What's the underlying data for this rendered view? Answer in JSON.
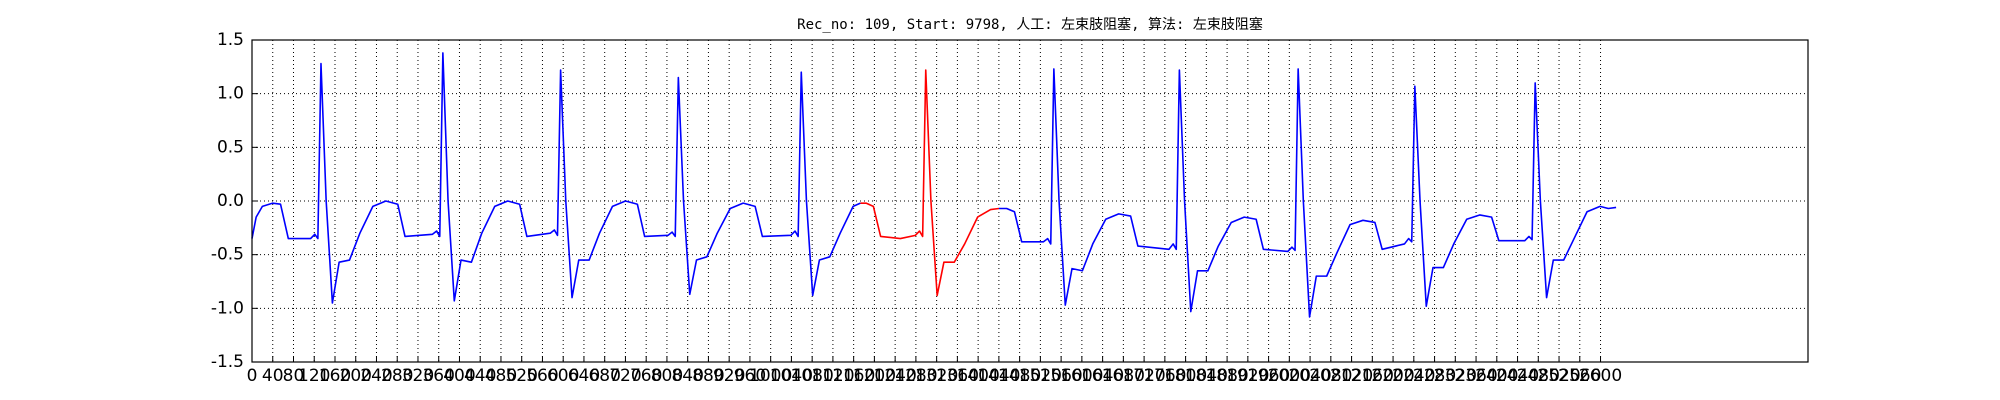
{
  "chart_data": {
    "type": "line",
    "title": "Rec_no: 109, Start: 9798, 人工: 左束肢阻塞, 算法: 左束肢阻塞",
    "xlim": [
      0,
      3000
    ],
    "ylim": [
      -1.5,
      1.5
    ],
    "xticks": [
      0,
      40,
      80,
      120,
      160,
      200,
      240,
      280,
      320,
      360,
      400,
      440,
      480,
      520,
      560,
      600,
      640,
      680,
      720,
      760,
      800,
      840,
      880,
      920,
      960,
      1000,
      1040,
      1080,
      1120,
      1160,
      1200,
      1240,
      1280,
      1320,
      1360,
      1400,
      1440,
      1480,
      1520,
      1560,
      1600,
      1640,
      1680,
      1720,
      1760,
      1800,
      1840,
      1880,
      1920,
      1960,
      2000,
      2040,
      2080,
      2120,
      2160,
      2200,
      2240,
      2280,
      2320,
      2360,
      2400,
      2440,
      2480,
      2520,
      2560,
      2600
    ],
    "yticks": [
      -1.5,
      {
        "value": -1,
        "label": "-1.0"
      },
      -0.5,
      {
        "value": 0,
        "label": "0.0"
      },
      0.5,
      {
        "value": 1,
        "label": "1.0"
      },
      1.5
    ],
    "grid": true,
    "series": [
      {
        "color": "#0000ff",
        "x": [
          0,
          8,
          20,
          40,
          55,
          70,
          113,
          121,
          127,
          133,
          143,
          155,
          168,
          188,
          208,
          233,
          258,
          281,
          295,
          348,
          356,
          362,
          368,
          378,
          390,
          403,
          423,
          443,
          468,
          493,
          516,
          530,
          575,
          583,
          589,
          595,
          605,
          617,
          630,
          650,
          670,
          695,
          720,
          743,
          757,
          802,
          810,
          816,
          822,
          832,
          844,
          857,
          877,
          897,
          922,
          947,
          970,
          984,
          1039,
          1047,
          1053,
          1059,
          1069,
          1081,
          1094,
          1114,
          1134,
          1159,
          1173,
          1300,
          1440,
          1455,
          1470,
          1484,
          1526,
          1534,
          1540,
          1546,
          1556,
          1568,
          1581,
          1601,
          1621,
          1646,
          1671,
          1694,
          1708,
          1768,
          1776,
          1782,
          1788,
          1798,
          1810,
          1823,
          1843,
          1863,
          1888,
          1913,
          1936,
          1950,
          1997,
          2005,
          2011,
          2017,
          2027,
          2039,
          2052,
          2072,
          2092,
          2117,
          2142,
          2165,
          2179,
          2222,
          2230,
          2236,
          2242,
          2252,
          2264,
          2277,
          2297,
          2317,
          2342,
          2367,
          2390,
          2404,
          2454,
          2462,
          2468,
          2474,
          2484,
          2496,
          2509,
          2529,
          2549,
          2574,
          2599,
          2615,
          2630
        ],
        "values": [
          -0.35,
          -0.15,
          -0.05,
          -0.02,
          -0.03,
          -0.35,
          -0.35,
          -0.31,
          -0.35,
          1.28,
          0.0,
          -0.95,
          -0.57,
          -0.55,
          -0.3,
          -0.05,
          0.0,
          -0.03,
          -0.33,
          -0.31,
          -0.28,
          -0.33,
          1.38,
          0.0,
          -0.93,
          -0.55,
          -0.57,
          -0.3,
          -0.05,
          0.0,
          -0.03,
          -0.33,
          -0.3,
          -0.27,
          -0.32,
          1.22,
          0.0,
          -0.9,
          -0.55,
          -0.55,
          -0.3,
          -0.05,
          0.0,
          -0.03,
          -0.33,
          -0.32,
          -0.29,
          -0.33,
          1.15,
          0.0,
          -0.87,
          -0.55,
          -0.52,
          -0.3,
          -0.07,
          -0.02,
          -0.05,
          -0.33,
          -0.32,
          -0.28,
          -0.33,
          1.2,
          0.0,
          -0.88,
          -0.55,
          -0.52,
          -0.3,
          -0.05,
          -0.02,
          null,
          -0.07,
          -0.07,
          -0.1,
          -0.38,
          -0.38,
          -0.35,
          -0.4,
          1.23,
          0.0,
          -0.97,
          -0.63,
          -0.65,
          -0.4,
          -0.17,
          -0.12,
          -0.14,
          -0.42,
          -0.45,
          -0.4,
          -0.45,
          1.22,
          0.0,
          -1.03,
          -0.65,
          -0.65,
          -0.42,
          -0.2,
          -0.15,
          -0.17,
          -0.45,
          -0.47,
          -0.43,
          -0.46,
          1.23,
          0.0,
          -1.08,
          -0.7,
          -0.7,
          -0.48,
          -0.22,
          -0.18,
          -0.2,
          -0.45,
          -0.4,
          -0.35,
          -0.38,
          1.07,
          0.0,
          -0.98,
          -0.62,
          -0.62,
          -0.4,
          -0.17,
          -0.13,
          -0.15,
          -0.37,
          -0.37,
          -0.33,
          -0.36,
          1.1,
          0.0,
          -0.9,
          -0.55,
          -0.55,
          -0.35,
          -0.1,
          -0.05,
          -0.07,
          -0.06
        ]
      },
      {
        "color": "#ff0000",
        "x": [
          1173,
          1184,
          1198,
          1212,
          1250,
          1279,
          1287,
          1293,
          1299,
          1309,
          1321,
          1334,
          1354,
          1374,
          1399,
          1424,
          1440
        ],
        "values": [
          -0.02,
          -0.02,
          -0.05,
          -0.33,
          -0.35,
          -0.32,
          -0.28,
          -0.33,
          1.22,
          0.0,
          -0.88,
          -0.57,
          -0.57,
          -0.4,
          -0.15,
          -0.08,
          -0.07
        ]
      }
    ]
  }
}
